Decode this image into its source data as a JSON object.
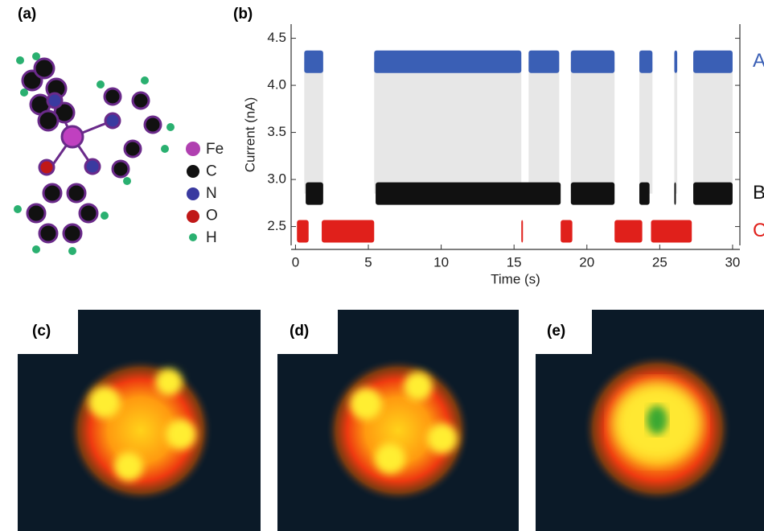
{
  "panels": {
    "a": "(a)",
    "b": "(b)",
    "c": "(c)",
    "d": "(d)",
    "e": "(e)"
  },
  "molecule_legend": [
    "Fe",
    "C",
    "N",
    "O",
    "H"
  ],
  "chart_data": {
    "type": "trace",
    "x_label": "Time (s)",
    "y_label": "Current (nA)",
    "xlim": [
      -0.3,
      30.5
    ],
    "ylim": [
      2.3,
      4.65
    ],
    "xticks": [
      0,
      5,
      10,
      15,
      20,
      25,
      30
    ],
    "yticks": [
      2.5,
      {
        "value": 3,
        "label": "3.0"
      },
      3.5,
      {
        "value": 4,
        "label": "4.0"
      },
      4.5
    ],
    "series": [
      {
        "name": "A",
        "color": "#3a5fb5",
        "level": 4.25,
        "intervals": [
          [
            0.6,
            1.9
          ],
          [
            5.4,
            15.5
          ],
          [
            16.0,
            18.1
          ],
          [
            18.9,
            21.9
          ],
          [
            23.6,
            24.5
          ],
          [
            26.0,
            26.2
          ],
          [
            27.3,
            30.0
          ]
        ]
      },
      {
        "name": "B",
        "color": "#111111",
        "level": 2.85,
        "intervals": [
          [
            0.7,
            1.9
          ],
          [
            5.5,
            18.2
          ],
          [
            18.9,
            21.9
          ],
          [
            23.6,
            24.3
          ],
          [
            26.0,
            26.1
          ],
          [
            27.3,
            30.0
          ]
        ]
      },
      {
        "name": "C",
        "color": "#e0201b",
        "level": 2.45,
        "intervals": [
          [
            0.1,
            0.9
          ],
          [
            1.8,
            5.4
          ],
          [
            15.5,
            15.6
          ],
          [
            18.2,
            19.0
          ],
          [
            21.9,
            23.8
          ],
          [
            24.4,
            27.2
          ]
        ]
      }
    ]
  }
}
